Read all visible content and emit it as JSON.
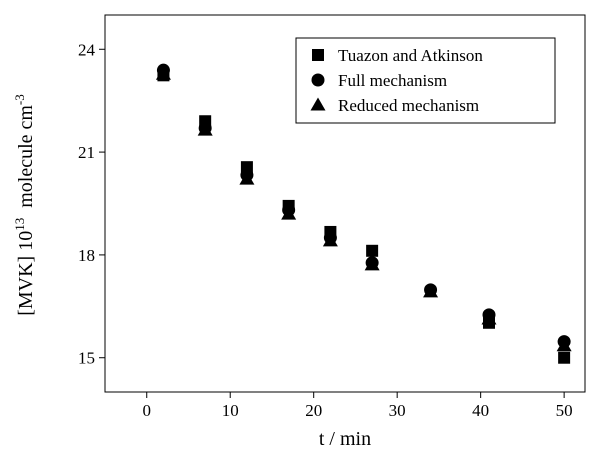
{
  "chart_data": {
    "type": "scatter",
    "x_label": "t / min",
    "y_label": [
      "[MVK] 10",
      "13",
      "  molecule cm",
      "-3"
    ],
    "xlim": [
      -5,
      52.5
    ],
    "ylim": [
      14,
      25
    ],
    "xticks": [
      0,
      10,
      20,
      30,
      40,
      50
    ],
    "yticks": [
      15,
      18,
      21,
      24
    ],
    "legend": "upper right",
    "series": [
      {
        "name": "Tuazon and Atkinson",
        "marker": "square",
        "color": "#000000",
        "x": [
          2,
          7,
          12,
          17,
          22,
          27,
          41,
          50
        ],
        "values": [
          23.24,
          21.9,
          20.56,
          19.43,
          18.67,
          18.12,
          16.02,
          15.0
        ]
      },
      {
        "name": "Full mechanism",
        "marker": "circle",
        "color": "#000000",
        "x": [
          2,
          7,
          12,
          17,
          22,
          27,
          34,
          41,
          50
        ],
        "values": [
          23.39,
          21.7,
          20.33,
          19.31,
          18.5,
          17.77,
          16.98,
          16.25,
          15.47
        ]
      },
      {
        "name": "Reduced mechanism",
        "marker": "triangle",
        "color": "#000000",
        "x": [
          2,
          7,
          12,
          17,
          22,
          27,
          34,
          41,
          50
        ],
        "values": [
          23.27,
          21.64,
          20.21,
          19.19,
          18.41,
          17.71,
          16.92,
          16.13,
          15.35
        ]
      }
    ]
  }
}
